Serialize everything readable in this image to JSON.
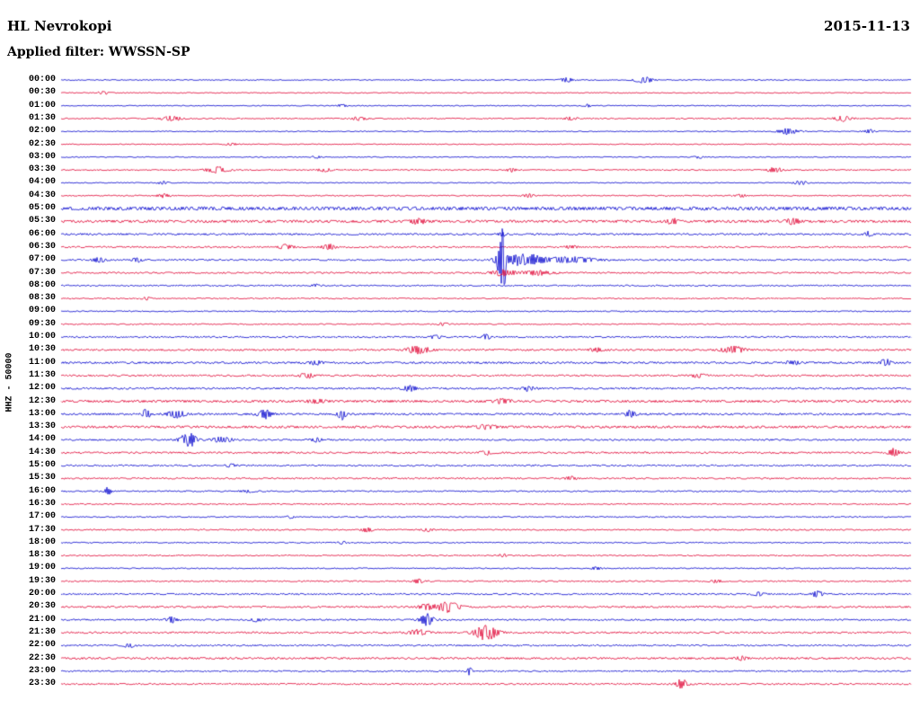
{
  "header": {
    "station_title": "HL Nevrokopi",
    "date": "2015-11-13",
    "filter_label": "Applied filter: WWSSN-SP"
  },
  "y_axis_label": "HHZ - 50000",
  "colors": {
    "trace_blue": "#0000cd",
    "trace_red": "#e00032",
    "text": "#000000",
    "background": "#ffffff"
  },
  "chart_data": {
    "type": "line",
    "subtype": "seismogram-helicorder",
    "title": "HL Nevrokopi",
    "date": "2015-11-13",
    "filter": "WWSSN-SP",
    "channel_scale_label": "HHZ - 50000",
    "row_interval_minutes": 30,
    "rows_count": 48,
    "time_start": "00:00",
    "time_end": "23:30",
    "events_format": "[x_fraction_of_row, amplitude_px, sigma_px]",
    "rows": [
      {
        "label": "00:00",
        "color": "blue",
        "noise": 0.5,
        "events": [
          [
            0.595,
            2.5,
            5
          ],
          [
            0.685,
            3.5,
            7
          ]
        ]
      },
      {
        "label": "00:30",
        "color": "red",
        "noise": 0.5,
        "events": [
          [
            0.05,
            1.5,
            4
          ]
        ]
      },
      {
        "label": "01:00",
        "color": "blue",
        "noise": 0.5,
        "events": [
          [
            0.33,
            1.5,
            4
          ],
          [
            0.62,
            1.5,
            3
          ]
        ]
      },
      {
        "label": "01:30",
        "color": "red",
        "noise": 0.6,
        "events": [
          [
            0.13,
            2.5,
            8
          ],
          [
            0.35,
            2,
            6
          ],
          [
            0.6,
            1.5,
            5
          ],
          [
            0.92,
            3,
            7
          ]
        ]
      },
      {
        "label": "02:00",
        "color": "blue",
        "noise": 0.5,
        "events": [
          [
            0.855,
            3,
            8
          ],
          [
            0.95,
            2,
            5
          ]
        ]
      },
      {
        "label": "02:30",
        "color": "red",
        "noise": 0.5,
        "events": [
          [
            0.2,
            1.5,
            4
          ]
        ]
      },
      {
        "label": "03:00",
        "color": "blue",
        "noise": 0.5,
        "events": [
          [
            0.3,
            1.5,
            3
          ],
          [
            0.75,
            1.5,
            3
          ]
        ]
      },
      {
        "label": "03:30",
        "color": "red",
        "noise": 0.6,
        "events": [
          [
            0.185,
            3.5,
            9
          ],
          [
            0.31,
            2,
            5
          ],
          [
            0.53,
            1.8,
            4
          ],
          [
            0.84,
            2.8,
            6
          ]
        ]
      },
      {
        "label": "04:00",
        "color": "blue",
        "noise": 0.5,
        "events": [
          [
            0.12,
            1.8,
            4
          ],
          [
            0.87,
            2.2,
            5
          ]
        ]
      },
      {
        "label": "04:30",
        "color": "red",
        "noise": 0.6,
        "events": [
          [
            0.12,
            2,
            5
          ],
          [
            0.55,
            1.8,
            4
          ],
          [
            0.8,
            1.8,
            4
          ]
        ]
      },
      {
        "label": "05:00",
        "color": "blue",
        "noise": 1.8,
        "events": []
      },
      {
        "label": "05:30",
        "color": "red",
        "noise": 1.3,
        "events": [
          [
            0.42,
            2.5,
            6
          ],
          [
            0.72,
            2.5,
            6
          ],
          [
            0.86,
            2.5,
            6
          ]
        ]
      },
      {
        "label": "06:00",
        "color": "blue",
        "noise": 0.9,
        "events": [
          [
            0.52,
            2,
            3
          ],
          [
            0.95,
            3.5,
            3
          ]
        ]
      },
      {
        "label": "06:30",
        "color": "red",
        "noise": 0.8,
        "events": [
          [
            0.265,
            3,
            5
          ],
          [
            0.315,
            3,
            5
          ],
          [
            0.6,
            1.8,
            4
          ]
        ]
      },
      {
        "label": "07:00",
        "color": "blue",
        "noise": 0.8,
        "events": [
          [
            0.045,
            2.5,
            5
          ],
          [
            0.09,
            2.2,
            4
          ],
          [
            0.517,
            14,
            4
          ],
          [
            0.52,
            42,
            1.6
          ],
          [
            0.545,
            7,
            14
          ],
          [
            0.6,
            3,
            20
          ]
        ]
      },
      {
        "label": "07:30",
        "color": "red",
        "noise": 0.8,
        "events": [
          [
            0.52,
            3,
            10
          ],
          [
            0.56,
            2.5,
            12
          ]
        ]
      },
      {
        "label": "08:00",
        "color": "blue",
        "noise": 0.7,
        "events": [
          [
            0.3,
            1.5,
            3
          ]
        ]
      },
      {
        "label": "08:30",
        "color": "red",
        "noise": 0.6,
        "events": [
          [
            0.1,
            1.5,
            3
          ]
        ]
      },
      {
        "label": "09:00",
        "color": "blue",
        "noise": 0.6,
        "events": []
      },
      {
        "label": "09:30",
        "color": "red",
        "noise": 0.6,
        "events": [
          [
            0.45,
            1.5,
            4
          ]
        ]
      },
      {
        "label": "10:00",
        "color": "blue",
        "noise": 0.8,
        "events": [
          [
            0.44,
            2,
            4
          ],
          [
            0.5,
            4,
            2.5
          ]
        ]
      },
      {
        "label": "10:30",
        "color": "red",
        "noise": 0.9,
        "events": [
          [
            0.42,
            4,
            9
          ],
          [
            0.63,
            2,
            5
          ],
          [
            0.79,
            4,
            9
          ]
        ]
      },
      {
        "label": "11:00",
        "color": "blue",
        "noise": 1.0,
        "events": [
          [
            0.3,
            2,
            5
          ],
          [
            0.86,
            2.5,
            5
          ],
          [
            0.97,
            4,
            4
          ]
        ]
      },
      {
        "label": "11:30",
        "color": "red",
        "noise": 0.9,
        "events": [
          [
            0.29,
            2.5,
            6
          ],
          [
            0.75,
            2,
            5
          ]
        ]
      },
      {
        "label": "12:00",
        "color": "blue",
        "noise": 0.9,
        "events": [
          [
            0.41,
            3,
            5
          ],
          [
            0.55,
            2.5,
            5
          ]
        ]
      },
      {
        "label": "12:30",
        "color": "red",
        "noise": 1.2,
        "events": [
          [
            0.3,
            2,
            6
          ],
          [
            0.52,
            2.5,
            6
          ]
        ]
      },
      {
        "label": "13:00",
        "color": "blue",
        "noise": 1.0,
        "events": [
          [
            0.1,
            7,
            2.5
          ],
          [
            0.135,
            5,
            6
          ],
          [
            0.24,
            5,
            5
          ],
          [
            0.33,
            6,
            3
          ],
          [
            0.67,
            4.5,
            4
          ]
        ]
      },
      {
        "label": "13:30",
        "color": "red",
        "noise": 1.2,
        "events": [
          [
            0.5,
            2,
            8
          ]
        ]
      },
      {
        "label": "14:00",
        "color": "blue",
        "noise": 0.8,
        "events": [
          [
            0.15,
            9,
            6
          ],
          [
            0.19,
            3,
            8
          ],
          [
            0.3,
            2,
            5
          ]
        ]
      },
      {
        "label": "14:30",
        "color": "red",
        "noise": 0.9,
        "events": [
          [
            0.5,
            2,
            5
          ],
          [
            0.98,
            4.5,
            4
          ]
        ]
      },
      {
        "label": "15:00",
        "color": "blue",
        "noise": 0.8,
        "events": [
          [
            0.2,
            1.8,
            4
          ]
        ]
      },
      {
        "label": "15:30",
        "color": "red",
        "noise": 0.8,
        "events": [
          [
            0.6,
            1.8,
            4
          ]
        ]
      },
      {
        "label": "16:00",
        "color": "blue",
        "noise": 0.7,
        "events": [
          [
            0.055,
            4.5,
            2.5
          ],
          [
            0.22,
            1.8,
            4
          ]
        ]
      },
      {
        "label": "16:30",
        "color": "red",
        "noise": 0.6,
        "events": []
      },
      {
        "label": "17:00",
        "color": "blue",
        "noise": 0.6,
        "events": [
          [
            0.27,
            2,
            2.5
          ]
        ]
      },
      {
        "label": "17:30",
        "color": "red",
        "noise": 0.7,
        "events": [
          [
            0.36,
            2.2,
            4
          ],
          [
            0.43,
            2,
            4
          ]
        ]
      },
      {
        "label": "18:00",
        "color": "blue",
        "noise": 0.6,
        "events": [
          [
            0.33,
            1.8,
            3
          ]
        ]
      },
      {
        "label": "18:30",
        "color": "red",
        "noise": 0.6,
        "events": [
          [
            0.52,
            2.2,
            3
          ]
        ]
      },
      {
        "label": "19:00",
        "color": "blue",
        "noise": 0.6,
        "events": [
          [
            0.63,
            2.2,
            3
          ]
        ]
      },
      {
        "label": "19:30",
        "color": "red",
        "noise": 0.7,
        "events": [
          [
            0.42,
            2.2,
            4
          ],
          [
            0.77,
            1.8,
            4
          ]
        ]
      },
      {
        "label": "20:00",
        "color": "blue",
        "noise": 0.8,
        "events": [
          [
            0.82,
            2,
            5
          ],
          [
            0.89,
            3.5,
            4
          ]
        ]
      },
      {
        "label": "20:30",
        "color": "red",
        "noise": 0.9,
        "events": [
          [
            0.43,
            3,
            6
          ],
          [
            0.455,
            7,
            8
          ]
        ]
      },
      {
        "label": "21:00",
        "color": "blue",
        "noise": 0.8,
        "events": [
          [
            0.13,
            3,
            4
          ],
          [
            0.23,
            2,
            4
          ],
          [
            0.43,
            7,
            5
          ]
        ]
      },
      {
        "label": "21:30",
        "color": "red",
        "noise": 0.9,
        "events": [
          [
            0.42,
            3,
            8
          ],
          [
            0.5,
            8,
            9
          ]
        ]
      },
      {
        "label": "22:00",
        "color": "blue",
        "noise": 0.8,
        "events": [
          [
            0.08,
            2,
            4
          ]
        ]
      },
      {
        "label": "22:30",
        "color": "red",
        "noise": 1.0,
        "events": [
          [
            0.8,
            2,
            4
          ]
        ]
      },
      {
        "label": "23:00",
        "color": "blue",
        "noise": 0.7,
        "events": [
          [
            0.48,
            4,
            2.5
          ]
        ]
      },
      {
        "label": "23:30",
        "color": "red",
        "noise": 0.8,
        "events": [
          [
            0.73,
            5.5,
            5
          ]
        ]
      }
    ]
  }
}
